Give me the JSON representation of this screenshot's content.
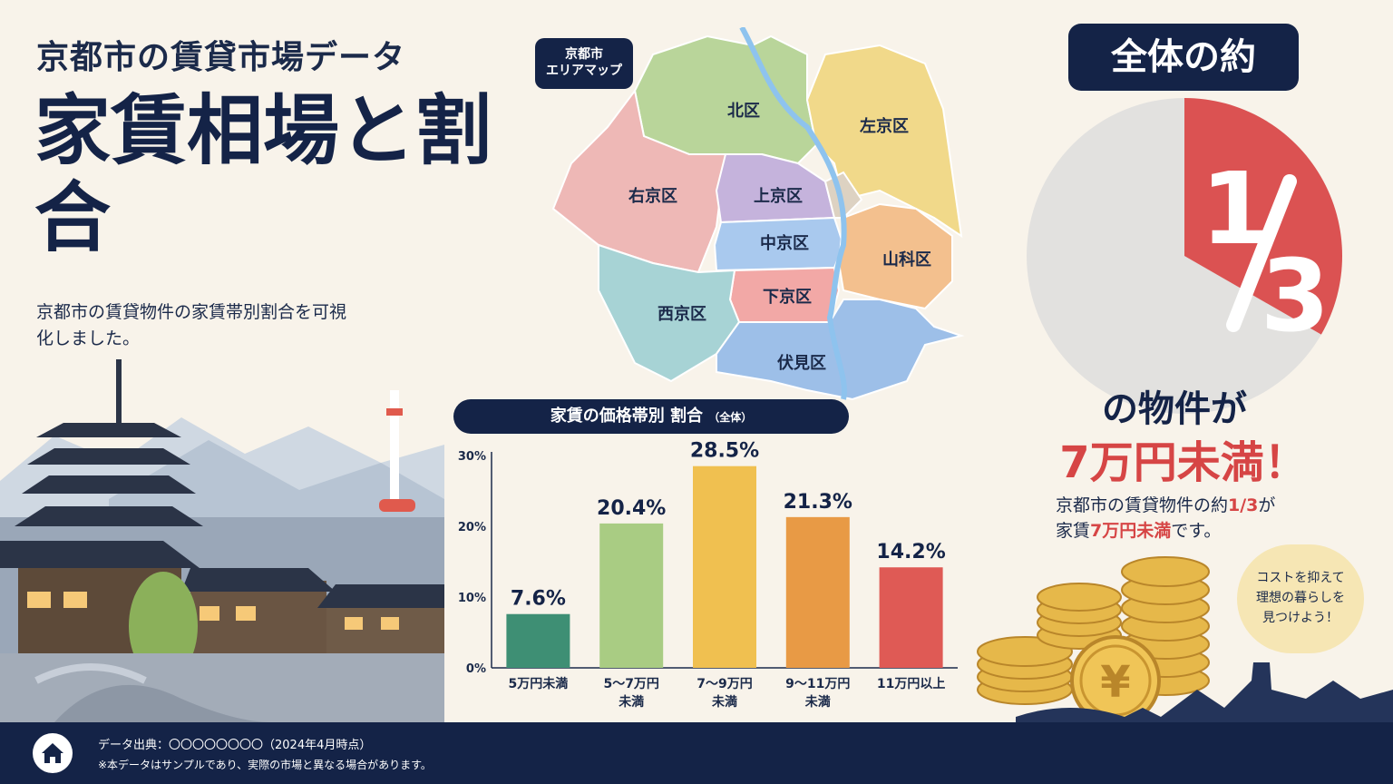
{
  "header": {
    "subtitle": "京都市の賃貸市場データ",
    "headline": "家賃相場と割合",
    "description": "京都市の賃貸物件の家賃帯別割合を可視化しました。"
  },
  "map": {
    "tag": "京都市\nエリアマップ",
    "wards": [
      "北区",
      "左京区",
      "右京区",
      "上京区",
      "中京区",
      "山科区",
      "下京区",
      "西京区",
      "伏見区"
    ],
    "colors": {
      "kita": "#b9d59a",
      "sakyo": "#f1d98a",
      "ukyo": "#eeb8b6",
      "kamigyo": "#c5b3dc",
      "nakagyo": "#a9c9ee",
      "yamashina": "#f3c08e",
      "shimogyo": "#f2a8a6",
      "nishikyo": "#a7d3d5",
      "fushimi": "#9dbfe8",
      "higashiyama": "#ddd2c2",
      "river": "#8ec3ee"
    }
  },
  "chart_data": {
    "type": "bar",
    "title": "家賃の価格帯別 割合",
    "title_note": "（全体）",
    "categories": [
      "5万円未満",
      "5～7万円未満",
      "7～9万円未満",
      "9～11万円未満",
      "11万円以上"
    ],
    "category_lines": [
      [
        "5万円未満"
      ],
      [
        "5～7万円",
        "未満"
      ],
      [
        "7～9万円",
        "未満"
      ],
      [
        "9～11万円",
        "未満"
      ],
      [
        "11万円以上"
      ]
    ],
    "values": [
      7.6,
      20.4,
      28.5,
      21.3,
      14.2
    ],
    "value_labels": [
      "7.6%",
      "20.4%",
      "28.5%",
      "21.3%",
      "14.2%"
    ],
    "bar_colors": [
      "#3e8f74",
      "#a9cc83",
      "#f0c050",
      "#e89a45",
      "#df5a55"
    ],
    "ylim": [
      0,
      30
    ],
    "yticks": [
      "0%",
      "10%",
      "20%",
      "30%"
    ],
    "grid": false
  },
  "highlight": {
    "badge": "全体の約",
    "fraction": "1/3",
    "fraction_value": 0.333,
    "pie_colors": {
      "highlight": "#db5252",
      "rest": "#e2e1df"
    },
    "text_objects": "の物件が",
    "text_under": "7万円未満！",
    "note_prefix": "京都市の賃貸物件の約",
    "note_frac": "1/3",
    "note_mid": "が",
    "note_line2_prefix": "家賃",
    "note_line2_bold": "7万円未満",
    "note_line2_suffix": "です。",
    "bubble": "コストを抑えて\n理想の暮らしを\n見つけよう！"
  },
  "footer": {
    "source": "データ出典：〇〇〇〇〇〇〇〇（2024年4月時点）",
    "disclaimer": "※本データはサンプルであり、実際の市場と異なる場合があります。"
  }
}
